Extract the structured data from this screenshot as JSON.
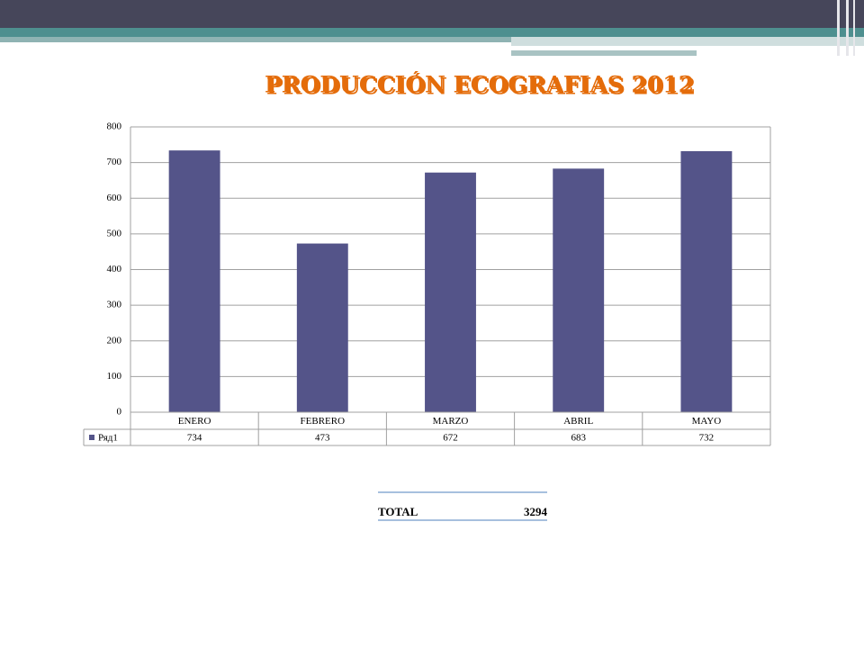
{
  "chart_data": {
    "type": "bar",
    "title": "PRODUCCIÓN ECOGRAFIAS 2012",
    "categories": [
      "ENERO",
      "FEBRERO",
      "MARZO",
      "ABRIL",
      "MAYO"
    ],
    "series": [
      {
        "name": "Ряд1",
        "color": "#545489",
        "values": [
          734,
          473,
          672,
          683,
          732
        ]
      }
    ],
    "ylim": [
      0,
      800
    ],
    "yticks": [
      0,
      100,
      200,
      300,
      400,
      500,
      600,
      700,
      800
    ],
    "grid": true
  },
  "total": {
    "label": "TOTAL",
    "value": 3294
  }
}
